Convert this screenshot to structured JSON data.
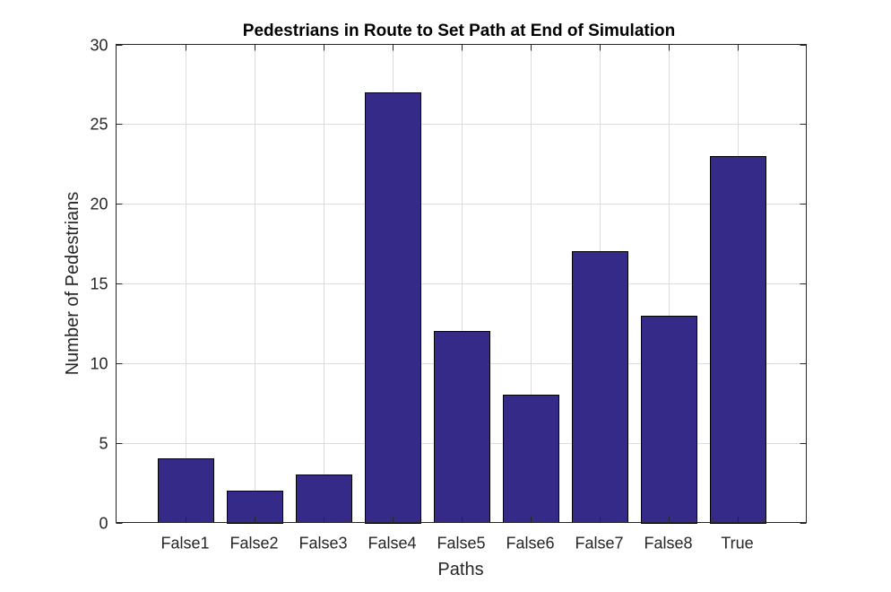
{
  "chart_data": {
    "type": "bar",
    "title": "Pedestrians in Route to Set Path at End of Simulation",
    "xlabel": "Paths",
    "ylabel": "Number of Pedestrians",
    "categories": [
      "False1",
      "False2",
      "False3",
      "False4",
      "False5",
      "False6",
      "False7",
      "False8",
      "True"
    ],
    "values": [
      4,
      2,
      3,
      27,
      12,
      8,
      17,
      13,
      23
    ],
    "ylim": [
      0,
      30
    ],
    "yticks": [
      0,
      5,
      10,
      15,
      20,
      25,
      30
    ],
    "grid": true,
    "legend": "none",
    "bar_color": "#352a87"
  }
}
